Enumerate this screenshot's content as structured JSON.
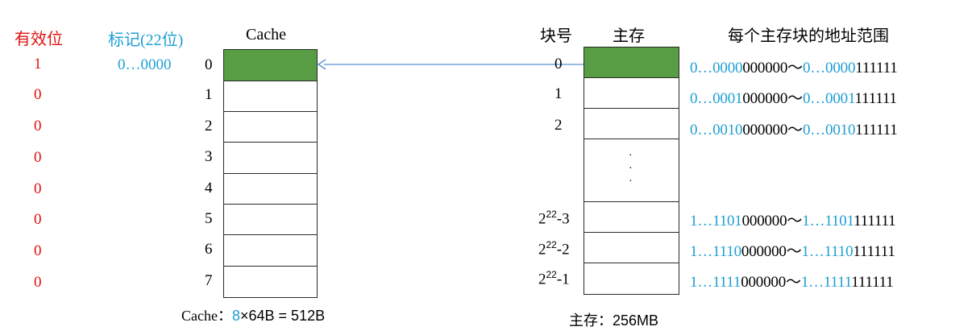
{
  "headers": {
    "valid": "有效位",
    "tag": "标记(22位)",
    "cache": "Cache",
    "block_no": "块号",
    "main_memory": "主存",
    "addr_range": "每个主存块的地址范围"
  },
  "valid_bits": [
    "1",
    "0",
    "0",
    "0",
    "0",
    "0",
    "0",
    "0"
  ],
  "tag_row0": "0…0000",
  "cache_lines": [
    "0",
    "1",
    "2",
    "3",
    "4",
    "5",
    "6",
    "7"
  ],
  "mem_block_labels": [
    "0",
    "1",
    "2"
  ],
  "mem_block_labels_high": [
    {
      "base": "2",
      "exp": "22",
      "suffix": "-3"
    },
    {
      "base": "2",
      "exp": "22",
      "suffix": "-2"
    },
    {
      "base": "2",
      "exp": "22",
      "suffix": "-1"
    }
  ],
  "ellipsis": "·",
  "ranges": [
    {
      "a_blue": "0…0000",
      "a_black": "000000",
      "sep": "～",
      "b_blue": "0…0000",
      "b_black": "111111"
    },
    {
      "a_blue": "0…0001",
      "a_black": "000000",
      "sep": "～",
      "b_blue": "0…0001",
      "b_black": "111111"
    },
    {
      "a_blue": "0…0010",
      "a_black": "000000",
      "sep": "～",
      "b_blue": "0…0010",
      "b_black": "111111"
    },
    {
      "a_blue": "1…1101",
      "a_black": "000000",
      "sep": "～",
      "b_blue": "1…1101",
      "b_black": "111111"
    },
    {
      "a_blue": "1…1110",
      "a_black": "000000",
      "sep": "～",
      "b_blue": "1…1110",
      "b_black": "111111"
    },
    {
      "a_blue": "1…1111",
      "a_black": "000000",
      "sep": "～",
      "b_blue": "1…1111",
      "b_black": "111111"
    }
  ],
  "cache_caption": {
    "prefix": "Cache：",
    "lines": "8",
    "rest": "×64B = 512B"
  },
  "mem_caption": {
    "prefix": "主存：",
    "size": "256MB"
  },
  "colors": {
    "valid_text": "#e0100f",
    "tag_text": "#1e9ed4",
    "filled_cell": "#589c43",
    "arrow": "#5b8fd0"
  }
}
